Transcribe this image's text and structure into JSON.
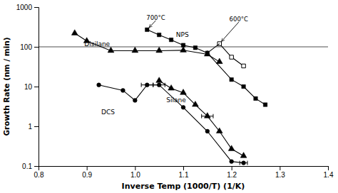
{
  "chart_data": {
    "type": "line",
    "log": "y",
    "grid": false,
    "xlabel": "Inverse Temp (1000/T) (1/K)",
    "ylabel": "Growth Rate (nm / min)",
    "xlim": [
      0.8,
      1.4
    ],
    "ylim": [
      0.1,
      1000
    ],
    "xticks": [
      0.8,
      0.9,
      {
        "value": 1.0,
        "label": "1.0"
      },
      1.1,
      1.2,
      1.3,
      1.4
    ],
    "yticks": [
      0.1,
      1,
      10,
      100,
      1000
    ],
    "series": [
      {
        "color": "#000000",
        "marker": "square",
        "line_style": "solid",
        "x": [
          1.025,
          1.05,
          1.075,
          1.1,
          1.125,
          1.15,
          1.2,
          1.225,
          1.25,
          1.27
        ],
        "values": [
          270,
          200,
          150,
          110,
          95,
          70,
          15,
          10,
          5,
          3.5
        ]
      },
      {
        "color": "#000000",
        "marker": "square-open",
        "line_style": "solid",
        "x": [
          1.175,
          1.2,
          1.225
        ],
        "values": [
          120,
          55,
          33
        ]
      },
      {
        "color": "#000000",
        "marker": "none",
        "line_style": "solid",
        "x": [
          1.15,
          1.175
        ],
        "values": [
          70,
          120
        ]
      },
      {
        "color": "#000000",
        "marker": "triangle",
        "line_style": "solid",
        "x": [
          0.875,
          0.9,
          0.95,
          1.0,
          1.05,
          1.1,
          1.15,
          1.175
        ],
        "values": [
          220,
          140,
          80,
          80,
          80,
          82,
          65,
          42
        ]
      },
      {
        "color": "#000000",
        "marker": "triangle",
        "line_style": "solid",
        "x": [
          1.05,
          1.075,
          1.1,
          1.125,
          1.15,
          1.175,
          1.2,
          1.225
        ],
        "values": [
          14,
          9,
          7,
          3.5,
          1.8,
          0.75,
          0.27,
          0.18
        ],
        "error_bars": {
          "x": [
            1.15
          ],
          "y": [
            1.8
          ],
          "xerr": [
            0.012
          ]
        }
      },
      {
        "color": "#000000",
        "marker": "circle",
        "line_style": "solid",
        "x": [
          0.925,
          0.975,
          1.0,
          1.025,
          1.05,
          1.1,
          1.15,
          1.2,
          1.225
        ],
        "values": [
          11,
          8,
          4.5,
          11,
          11,
          3.0,
          0.75,
          0.13,
          0.12
        ],
        "error_bars": {
          "x": [
            1.025,
            1.05,
            1.225
          ],
          "y": [
            11,
            11,
            0.12
          ],
          "xerr": [
            0.012,
            0.012,
            0.008
          ]
        }
      }
    ],
    "hlines": [
      100
    ],
    "annotations": [
      {
        "text": "700°C",
        "x": 1.043,
        "y": 460,
        "arrow_x": 1.025,
        "arrow_y": 270
      },
      {
        "text": "600°C",
        "x": 1.215,
        "y": 420,
        "arrow_x": 1.175,
        "arrow_y": 120
      },
      {
        "text": "Disilane",
        "x": 0.895,
        "y": 115
      },
      {
        "text": "NPS",
        "x": 1.085,
        "y": 195
      },
      {
        "text": "Silane",
        "x": 1.065,
        "y": 4.5
      },
      {
        "text": "DCS",
        "x": 0.93,
        "y": 2.2
      }
    ]
  }
}
